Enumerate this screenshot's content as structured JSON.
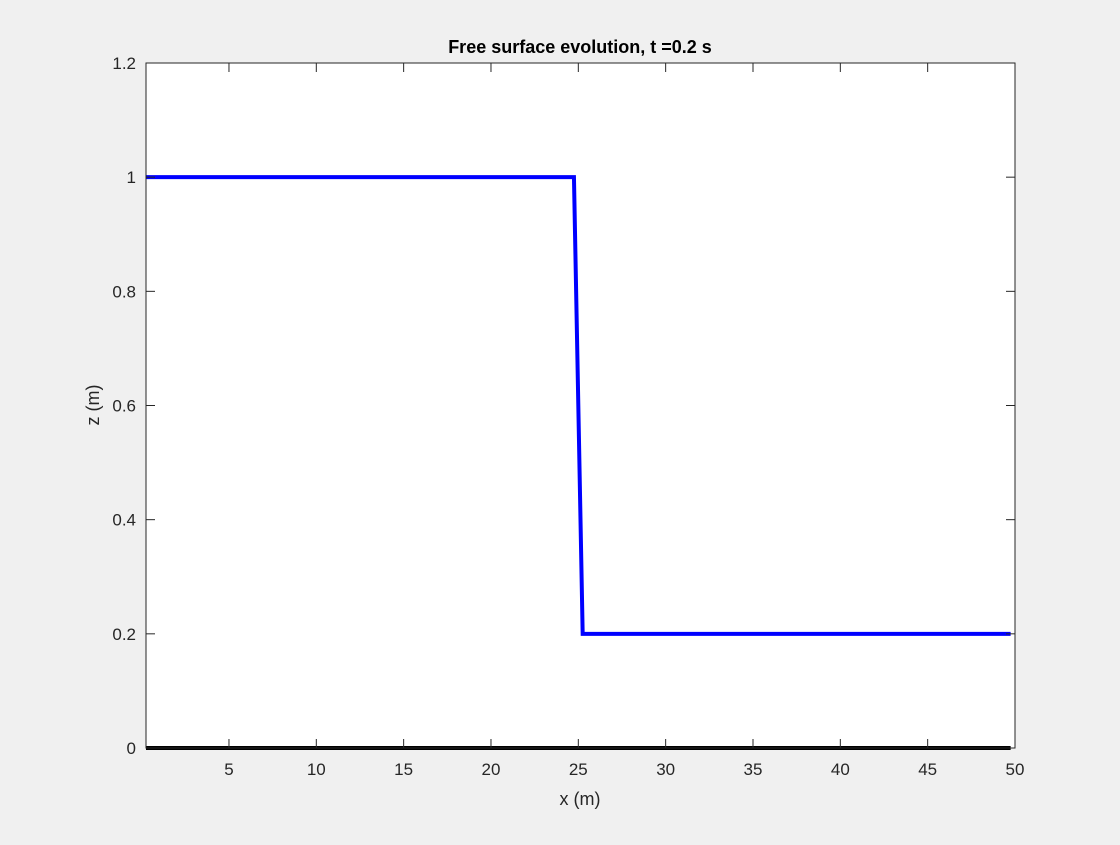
{
  "chart_data": {
    "type": "line",
    "title": "Free surface evolution, t =0.2 s",
    "xlabel": "x (m)",
    "ylabel": "z (m)",
    "xlim": [
      0.25,
      50
    ],
    "ylim": [
      0,
      1.2
    ],
    "xticks": [
      5,
      10,
      15,
      20,
      25,
      30,
      35,
      40,
      45,
      50
    ],
    "xtick_labels": [
      "5",
      "10",
      "15",
      "20",
      "25",
      "30",
      "35",
      "40",
      "45",
      "50"
    ],
    "yticks": [
      0,
      0.2,
      0.4,
      0.6,
      0.8,
      1,
      1.2
    ],
    "ytick_labels": [
      "0",
      "0.2",
      "0.4",
      "0.6",
      "0.8",
      "1",
      "1.2"
    ],
    "grid": false,
    "series": [
      {
        "color": "#0000ff",
        "x": [
          0.25,
          24.75,
          25.25,
          49.75
        ],
        "y": [
          1,
          1,
          0.2,
          0.2
        ]
      },
      {
        "color": "#000000",
        "x": [
          0.25,
          49.75
        ],
        "y": [
          0,
          0
        ]
      }
    ]
  }
}
